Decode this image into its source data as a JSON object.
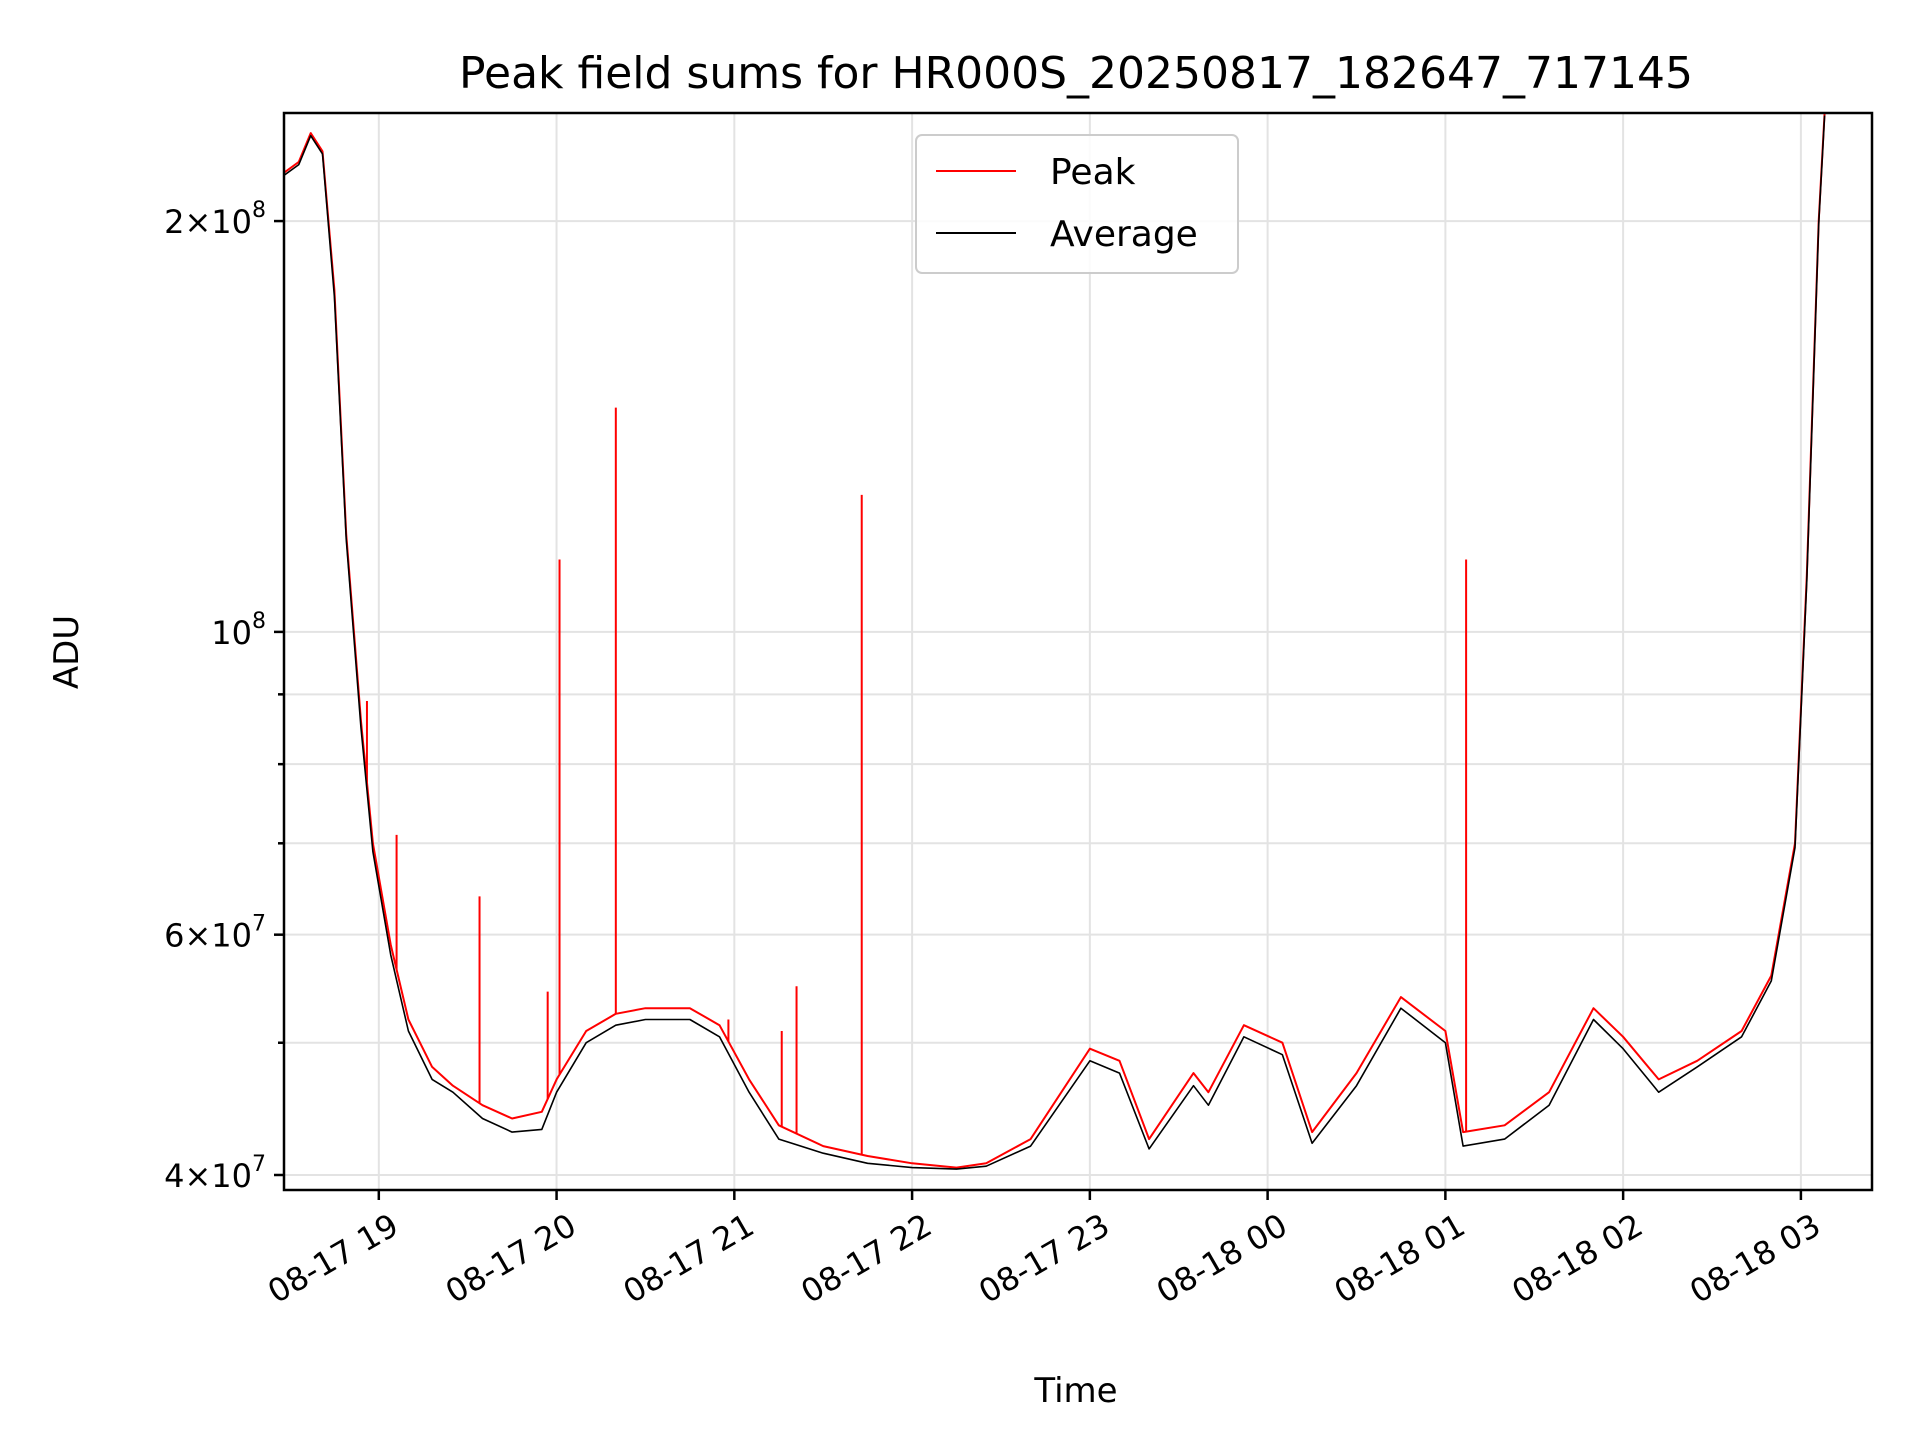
{
  "chart_data": {
    "type": "line",
    "title": "Peak field sums for HR000S_20250817_182647_717145",
    "xlabel": "Time",
    "ylabel": "ADU",
    "yscale": "log",
    "grid": true,
    "legend_position": "top-center",
    "xlim": [
      "2025-08-17 18:28",
      "2025-08-18 03:24"
    ],
    "ylim": [
      39000000,
      240000000
    ],
    "x_ticks": [
      {
        "value": "2025-08-17 19:00",
        "label": "08-17 19"
      },
      {
        "value": "2025-08-17 20:00",
        "label": "08-17 20"
      },
      {
        "value": "2025-08-17 21:00",
        "label": "08-17 21"
      },
      {
        "value": "2025-08-17 22:00",
        "label": "08-17 22"
      },
      {
        "value": "2025-08-17 23:00",
        "label": "08-17 23"
      },
      {
        "value": "2025-08-18 00:00",
        "label": "08-18 00"
      },
      {
        "value": "2025-08-18 01:00",
        "label": "08-18 01"
      },
      {
        "value": "2025-08-18 02:00",
        "label": "08-18 02"
      },
      {
        "value": "2025-08-18 03:00",
        "label": "08-18 03"
      }
    ],
    "y_ticks_major": [
      {
        "value": 40000000,
        "base": "4",
        "exp": "7"
      },
      {
        "value": 60000000,
        "base": "6",
        "exp": "7"
      },
      {
        "value": 100000000,
        "base": "",
        "exp": "8"
      },
      {
        "value": 200000000,
        "base": "2",
        "exp": "8"
      }
    ],
    "y_ticks_minor": [
      50000000,
      70000000,
      80000000,
      90000000
    ],
    "series": [
      {
        "name": "Peak",
        "color": "#ff0000",
        "x": [
          "2025-08-17 18:28",
          "2025-08-17 18:33",
          "2025-08-17 18:37",
          "2025-08-17 18:41",
          "2025-08-17 18:45",
          "2025-08-17 18:49",
          "2025-08-17 18:54",
          "2025-08-17 18:58",
          "2025-08-17 19:04",
          "2025-08-17 19:10",
          "2025-08-17 19:18",
          "2025-08-17 19:25",
          "2025-08-17 19:35",
          "2025-08-17 19:45",
          "2025-08-17 19:55",
          "2025-08-17 20:00",
          "2025-08-17 20:10",
          "2025-08-17 20:20",
          "2025-08-17 20:30",
          "2025-08-17 20:45",
          "2025-08-17 20:55",
          "2025-08-17 21:05",
          "2025-08-17 21:15",
          "2025-08-17 21:30",
          "2025-08-17 21:45",
          "2025-08-17 22:00",
          "2025-08-17 22:15",
          "2025-08-17 22:25",
          "2025-08-17 22:40",
          "2025-08-17 23:00",
          "2025-08-17 23:10",
          "2025-08-17 23:20",
          "2025-08-17 23:35",
          "2025-08-17 23:40",
          "2025-08-17 23:52",
          "2025-08-18 00:05",
          "2025-08-18 00:15",
          "2025-08-18 00:30",
          "2025-08-18 00:45",
          "2025-08-18 01:00",
          "2025-08-18 01:06",
          "2025-08-18 01:20",
          "2025-08-18 01:35",
          "2025-08-18 01:50",
          "2025-08-18 02:00",
          "2025-08-18 02:12",
          "2025-08-18 02:25",
          "2025-08-18 02:40",
          "2025-08-18 02:50",
          "2025-08-18 02:58",
          "2025-08-18 03:02",
          "2025-08-18 03:06",
          "2025-08-18 03:08"
        ],
        "y": [
          217000000,
          221000000,
          232000000,
          225000000,
          178000000,
          118000000,
          86000000,
          70000000,
          59000000,
          52000000,
          48000000,
          46500000,
          45000000,
          44000000,
          44500000,
          47000000,
          51000000,
          52500000,
          53000000,
          53000000,
          51500000,
          47000000,
          43500000,
          42000000,
          41300000,
          40800000,
          40500000,
          40800000,
          42500000,
          49500000,
          48500000,
          42500000,
          47500000,
          46000000,
          51500000,
          50000000,
          43000000,
          47500000,
          54000000,
          51000000,
          43000000,
          43500000,
          46000000,
          53000000,
          50500000,
          47000000,
          48500000,
          51000000,
          56000000,
          70000000,
          110000000,
          200000000,
          240000000
        ],
        "spikes": [
          {
            "x": "2025-08-17 18:56",
            "y": 89000000
          },
          {
            "x": "2025-08-17 19:06",
            "y": 71000000
          },
          {
            "x": "2025-08-17 19:34",
            "y": 64000000
          },
          {
            "x": "2025-08-17 19:57",
            "y": 54500000
          },
          {
            "x": "2025-08-17 20:01",
            "y": 113000000
          },
          {
            "x": "2025-08-17 20:20",
            "y": 146000000
          },
          {
            "x": "2025-08-17 20:58",
            "y": 52000000
          },
          {
            "x": "2025-08-17 21:16",
            "y": 51000000
          },
          {
            "x": "2025-08-17 21:21",
            "y": 55000000
          },
          {
            "x": "2025-08-17 21:43",
            "y": 126000000
          },
          {
            "x": "2025-08-18 01:07",
            "y": 113000000
          }
        ]
      },
      {
        "name": "Average",
        "color": "#000000",
        "x": [
          "2025-08-17 18:28",
          "2025-08-17 18:33",
          "2025-08-17 18:37",
          "2025-08-17 18:41",
          "2025-08-17 18:45",
          "2025-08-17 18:49",
          "2025-08-17 18:54",
          "2025-08-17 18:58",
          "2025-08-17 19:04",
          "2025-08-17 19:10",
          "2025-08-17 19:18",
          "2025-08-17 19:25",
          "2025-08-17 19:35",
          "2025-08-17 19:45",
          "2025-08-17 19:55",
          "2025-08-17 20:00",
          "2025-08-17 20:10",
          "2025-08-17 20:20",
          "2025-08-17 20:30",
          "2025-08-17 20:45",
          "2025-08-17 20:55",
          "2025-08-17 21:05",
          "2025-08-17 21:15",
          "2025-08-17 21:30",
          "2025-08-17 21:45",
          "2025-08-17 22:00",
          "2025-08-17 22:15",
          "2025-08-17 22:25",
          "2025-08-17 22:40",
          "2025-08-17 23:00",
          "2025-08-17 23:10",
          "2025-08-17 23:20",
          "2025-08-17 23:35",
          "2025-08-17 23:40",
          "2025-08-17 23:52",
          "2025-08-18 00:05",
          "2025-08-18 00:15",
          "2025-08-18 00:30",
          "2025-08-18 00:45",
          "2025-08-18 01:00",
          "2025-08-18 01:06",
          "2025-08-18 01:20",
          "2025-08-18 01:35",
          "2025-08-18 01:50",
          "2025-08-18 02:00",
          "2025-08-18 02:12",
          "2025-08-18 02:25",
          "2025-08-18 02:40",
          "2025-08-18 02:50",
          "2025-08-18 02:58",
          "2025-08-18 03:02",
          "2025-08-18 03:06",
          "2025-08-18 03:08"
        ],
        "y": [
          216000000,
          220000000,
          231000000,
          224000000,
          176000000,
          117000000,
          85000000,
          69000000,
          58000000,
          51000000,
          47000000,
          46000000,
          44000000,
          43000000,
          43200000,
          46000000,
          50000000,
          51500000,
          52000000,
          52000000,
          50500000,
          46000000,
          42500000,
          41500000,
          40800000,
          40500000,
          40400000,
          40600000,
          42000000,
          48500000,
          47500000,
          41800000,
          46500000,
          45000000,
          50500000,
          49000000,
          42200000,
          46500000,
          53000000,
          50000000,
          42000000,
          42500000,
          45000000,
          52000000,
          49500000,
          46000000,
          48000000,
          50500000,
          55500000,
          69500000,
          109000000,
          199000000,
          239000000
        ]
      }
    ]
  }
}
